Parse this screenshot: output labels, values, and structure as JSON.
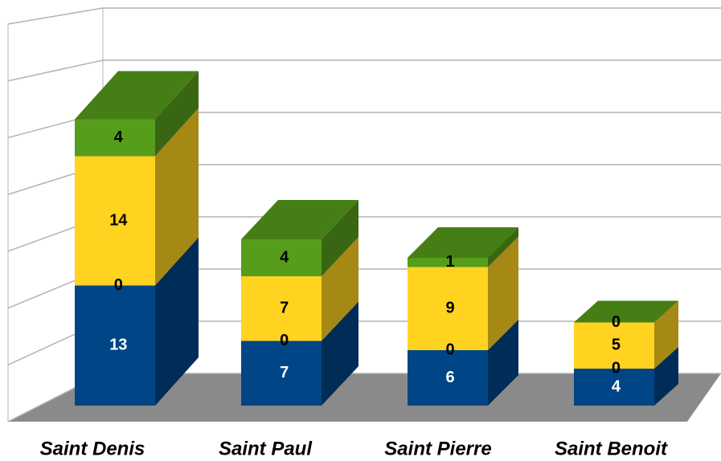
{
  "chart_data": {
    "type": "bar3d",
    "stacked": true,
    "categories": [
      "Saint Denis",
      "Saint Paul",
      "Saint Pierre",
      "Saint Benoit"
    ],
    "series": [
      {
        "color": "#004586",
        "values": [
          13,
          7,
          6,
          4
        ]
      },
      {
        "color": "#ff420e",
        "values": [
          0,
          0,
          0,
          0
        ]
      },
      {
        "color": "#ffd320",
        "values": [
          14,
          7,
          9,
          5
        ]
      },
      {
        "color": "#579d1c",
        "values": [
          4,
          4,
          1,
          0
        ]
      }
    ],
    "ylim": [
      0,
      35
    ],
    "yticks": [
      0,
      5,
      10,
      15,
      20,
      25,
      30,
      35
    ],
    "grid": true
  }
}
